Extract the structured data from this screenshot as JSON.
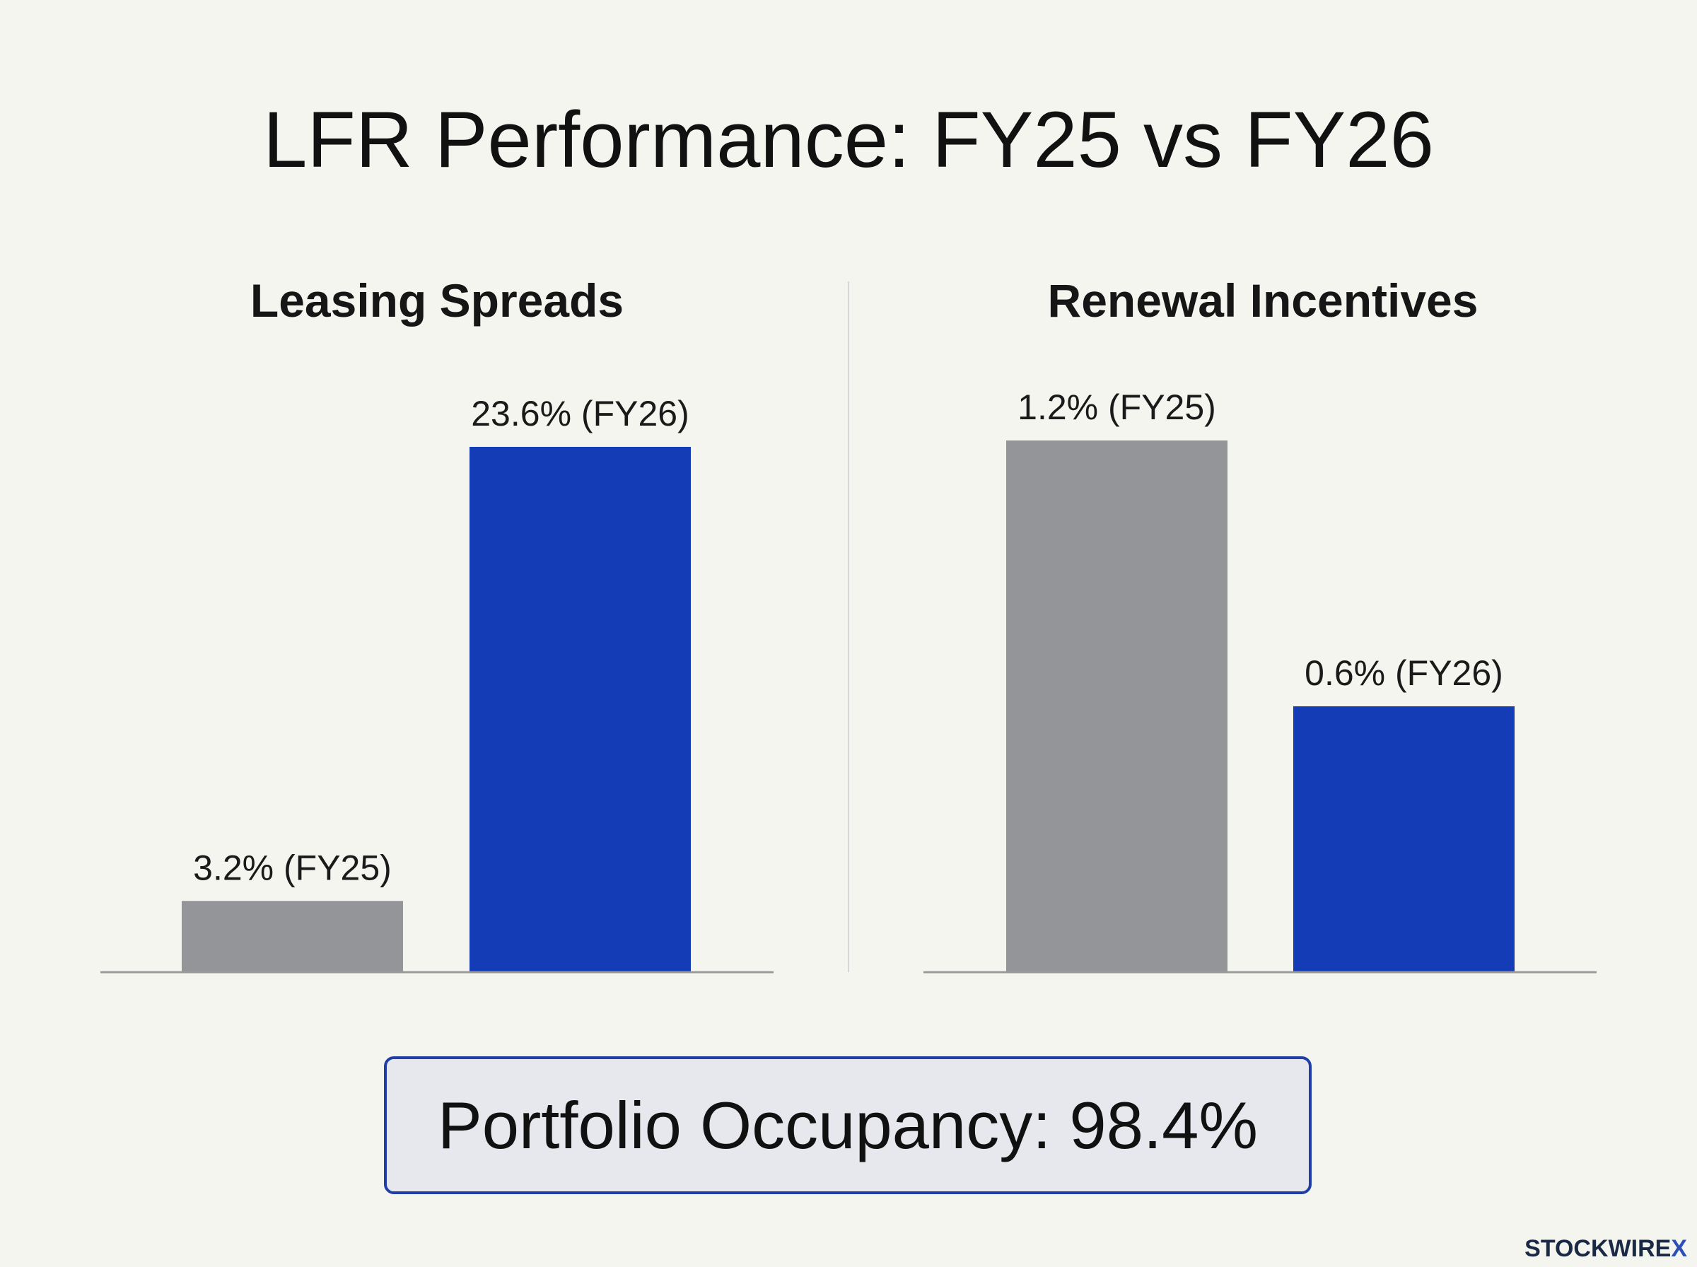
{
  "title": "LFR Performance: FY25 vs FY26",
  "colors": {
    "fy25": "#939598",
    "fy26": "#133cb6",
    "baseline": "#9a9a9a",
    "divider": "#d6d6d6"
  },
  "chart_data": [
    {
      "type": "bar",
      "title": "Leasing Spreads",
      "categories": [
        "FY25",
        "FY26"
      ],
      "values": [
        3.2,
        23.6
      ],
      "data_labels": [
        "3.2% (FY25)",
        "23.6% (FY26)"
      ],
      "ylim": [
        0,
        26
      ],
      "grid": false
    },
    {
      "type": "bar",
      "title": "Renewal Incentives",
      "categories": [
        "FY25",
        "FY26"
      ],
      "values": [
        1.2,
        0.6
      ],
      "data_labels": [
        "1.2% (FY25)",
        "0.6% (FY26)"
      ],
      "ylim": [
        0,
        1.5
      ],
      "grid": false
    }
  ],
  "callout": {
    "text": "Portfolio Occupancy: 98.4%"
  },
  "brand": {
    "name": "STOCKWIRE",
    "mark": "X"
  }
}
